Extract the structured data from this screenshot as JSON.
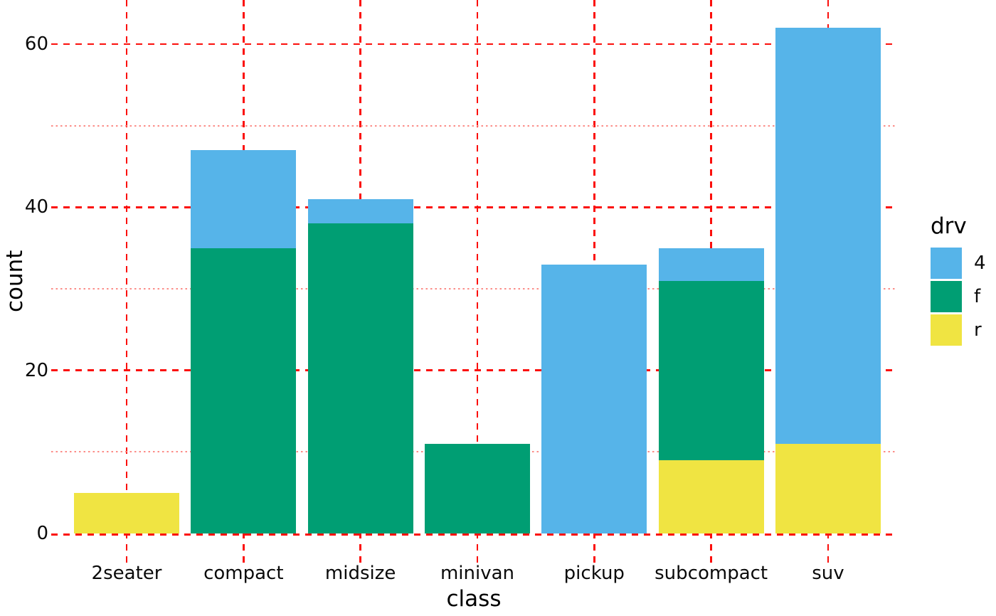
{
  "chart_data": {
    "type": "bar",
    "subtype": "stacked",
    "title": "",
    "xlabel": "class",
    "ylabel": "count",
    "categories": [
      "2seater",
      "compact",
      "midsize",
      "minivan",
      "pickup",
      "subcompact",
      "suv"
    ],
    "series": [
      {
        "name": "4",
        "color": "#56B4E9",
        "values": [
          0,
          12,
          3,
          0,
          33,
          4,
          51
        ]
      },
      {
        "name": "f",
        "color": "#009E73",
        "values": [
          0,
          35,
          38,
          11,
          0,
          22,
          0
        ]
      },
      {
        "name": "r",
        "color": "#F0E442",
        "values": [
          5,
          0,
          0,
          0,
          0,
          9,
          11
        ]
      }
    ],
    "stack_order_bottom_to_top": [
      "r",
      "f",
      "4"
    ],
    "totals": [
      5,
      47,
      41,
      11,
      33,
      35,
      62
    ],
    "ylim": [
      0,
      62
    ],
    "yticks_major": [
      0,
      20,
      40,
      60
    ],
    "yticks_minor": [
      10,
      30,
      50
    ],
    "grid": {
      "major_color": "#fb0f0c",
      "minor_color": "#fc8d88",
      "major_style": "dashed",
      "minor_style": "dotted"
    },
    "legend": {
      "title": "drv",
      "position": "right",
      "entries": [
        "4",
        "f",
        "r"
      ]
    }
  }
}
